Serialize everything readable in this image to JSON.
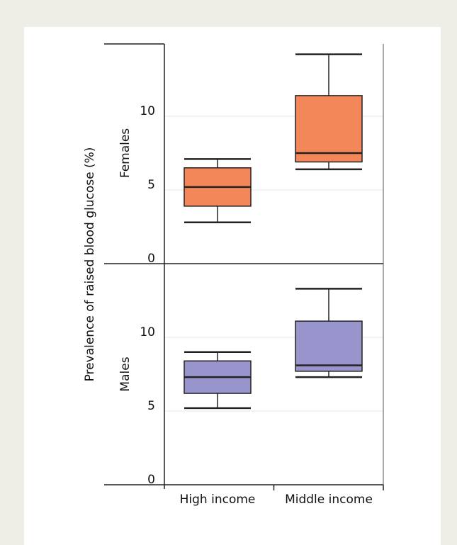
{
  "chart_data": {
    "type": "box",
    "ylabel": "Prevalence of raised blood glucose (%)",
    "categories": [
      "High income",
      "Middle income"
    ],
    "ylim": [
      0,
      14.5
    ],
    "yticks": [
      0,
      5,
      10
    ],
    "grid": "horizontal",
    "panels": [
      {
        "name": "Females",
        "color": "#f4875a",
        "boxes": [
          {
            "category": "High income",
            "min": 2.8,
            "q1": 3.9,
            "median": 5.2,
            "q3": 6.5,
            "max": 7.1
          },
          {
            "category": "Middle income",
            "min": 6.4,
            "q1": 6.9,
            "median": 7.5,
            "q3": 11.4,
            "max": 14.2
          }
        ]
      },
      {
        "name": "Males",
        "color": "#9795cc",
        "boxes": [
          {
            "category": "High income",
            "min": 5.2,
            "q1": 6.2,
            "median": 7.3,
            "q3": 8.4,
            "max": 9.0
          },
          {
            "category": "Middle income",
            "min": 7.3,
            "q1": 7.7,
            "median": 8.1,
            "q3": 11.1,
            "max": 13.3
          }
        ]
      }
    ]
  }
}
